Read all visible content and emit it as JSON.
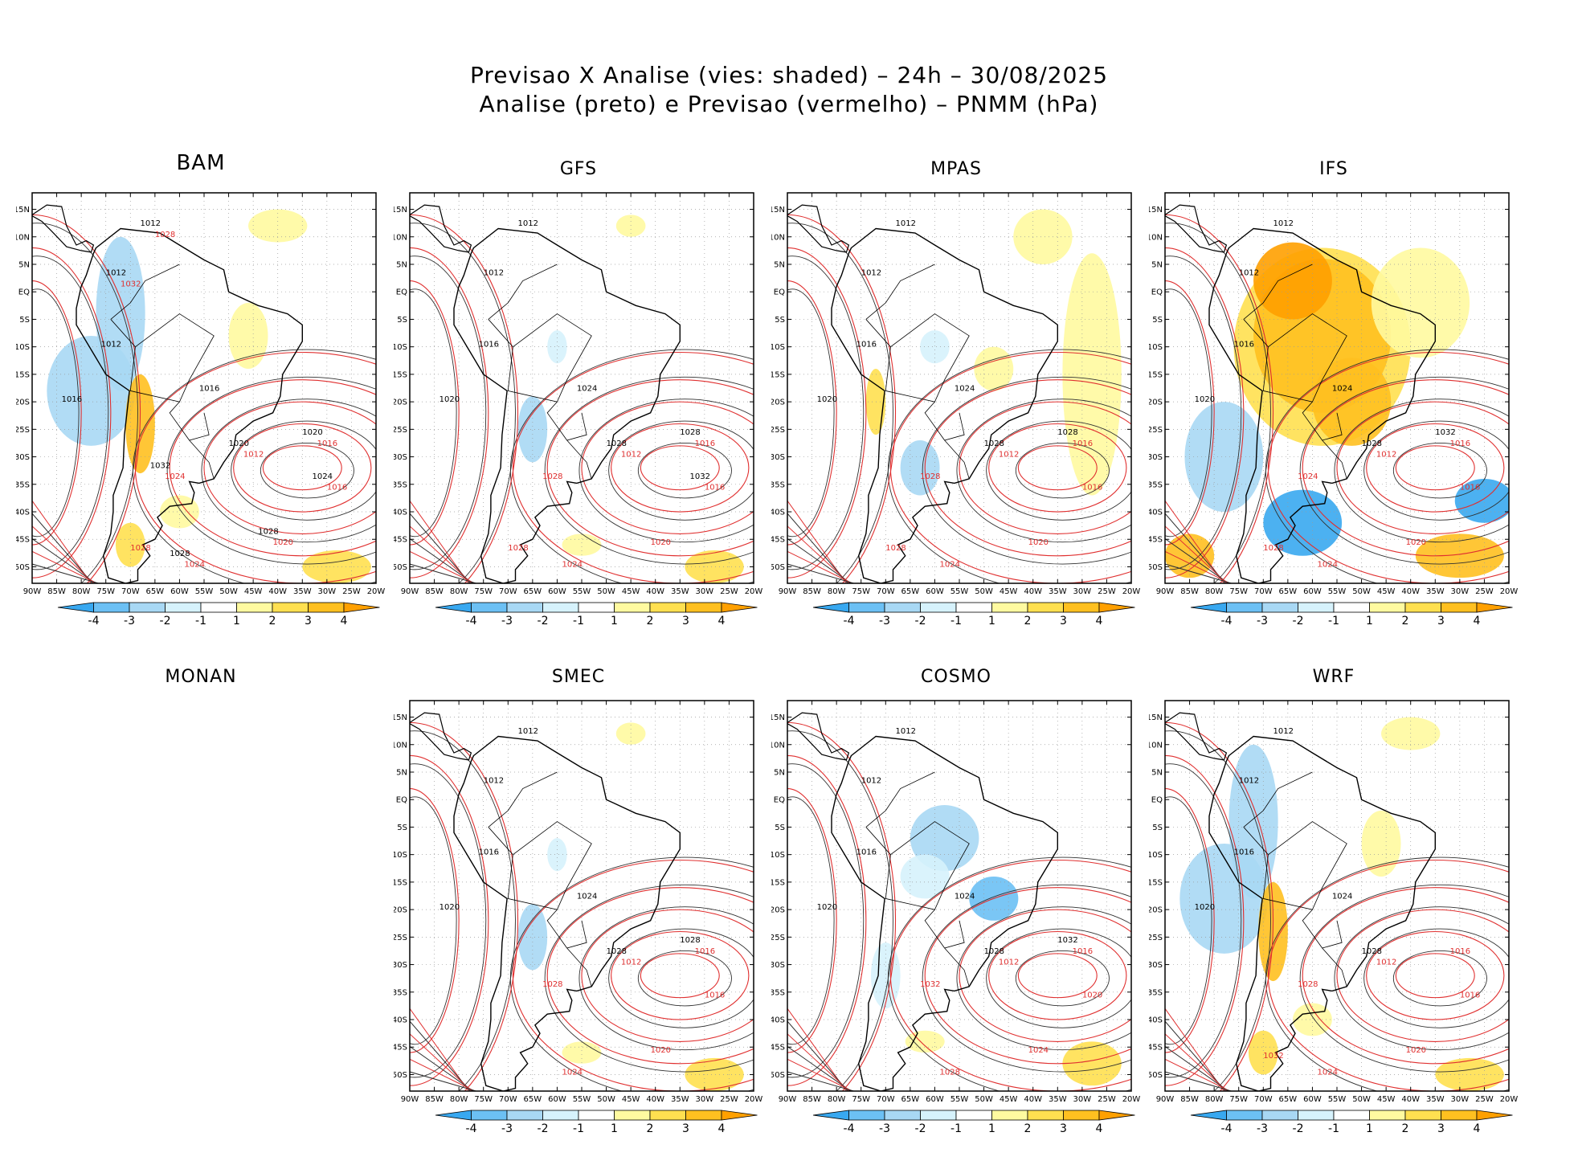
{
  "figure": {
    "title_line1": "Previsao X Analise (vies: shaded) – 24h – 30/08/2025",
    "title_line2": "Analise (preto) e Previsao (vermelho) – PNMM (hPa)"
  },
  "chart_data": {
    "type": "map-panels",
    "variable": "PNMM (hPa)",
    "forecast_hours": "24h",
    "date": "30/08/2025",
    "contours": {
      "analysis_color": "#000000",
      "forecast_color": "#e03030"
    },
    "lon_ticks": [
      "90W",
      "85W",
      "80W",
      "75W",
      "70W",
      "65W",
      "60W",
      "55W",
      "50W",
      "45W",
      "40W",
      "35W",
      "30W",
      "25W",
      "20W"
    ],
    "lat_ticks": [
      "15N",
      "10N",
      "5N",
      "EQ",
      "5S",
      "10S",
      "15S",
      "20S",
      "25S",
      "30S",
      "35S",
      "40S",
      "45S",
      "50S"
    ],
    "lon_range": [
      -90,
      -20
    ],
    "lat_range": [
      -53,
      18
    ],
    "colorbar": {
      "labels": [
        "-4",
        "-3",
        "-2",
        "-1",
        "1",
        "2",
        "3",
        "4"
      ],
      "colors": [
        "#38a8f0",
        "#6cc0f4",
        "#a8d8f4",
        "#d6f2fc",
        "#ffffff",
        "#fffaa0",
        "#ffe050",
        "#ffc020",
        "#ffa000"
      ]
    },
    "panels": [
      {
        "id": "bam",
        "name": "BAM",
        "has_map": true,
        "bias": "mixed",
        "iso_black": [
          "1012",
          "1012",
          "1012",
          "1016",
          "1016",
          "1020",
          "1020",
          "1024",
          "1028",
          "1028",
          "1032"
        ],
        "iso_red": [
          "1012",
          "1016",
          "1016",
          "1020",
          "1024",
          "1024",
          "1028",
          "1028",
          "1032"
        ]
      },
      {
        "id": "gfs",
        "name": "GFS",
        "has_map": true,
        "bias": "small",
        "iso_black": [
          "1012",
          "1012",
          "1016",
          "1020",
          "1024",
          "1028",
          "1028",
          "1032"
        ],
        "iso_red": [
          "1012",
          "1016",
          "1016",
          "1020",
          "1024",
          "1028",
          "1028"
        ]
      },
      {
        "id": "mpas",
        "name": "MPAS",
        "has_map": true,
        "bias": "positive-east",
        "iso_black": [
          "1012",
          "1012",
          "1016",
          "1020",
          "1024",
          "1028",
          "1028"
        ],
        "iso_red": [
          "1012",
          "1016",
          "1016",
          "1020",
          "1024",
          "1028",
          "1028"
        ]
      },
      {
        "id": "ifs",
        "name": "IFS",
        "has_map": true,
        "bias": "strong-positive-continent",
        "iso_black": [
          "1012",
          "1012",
          "1016",
          "1020",
          "1024",
          "1028",
          "1032"
        ],
        "iso_red": [
          "1012",
          "1016",
          "1016",
          "1020",
          "1024",
          "1024",
          "1028"
        ]
      },
      {
        "id": "monan",
        "name": "MONAN",
        "has_map": false
      },
      {
        "id": "smec",
        "name": "SMEC",
        "has_map": true,
        "bias": "small",
        "iso_black": [
          "1012",
          "1012",
          "1016",
          "1020",
          "1024",
          "1028",
          "1028"
        ],
        "iso_red": [
          "1012",
          "1016",
          "1016",
          "1020",
          "1024",
          "1028"
        ]
      },
      {
        "id": "cosmo",
        "name": "COSMO",
        "has_map": true,
        "bias": "negative-center",
        "iso_black": [
          "1012",
          "1012",
          "1016",
          "1020",
          "1024",
          "1028",
          "1032"
        ],
        "iso_red": [
          "1012",
          "1016",
          "1020",
          "1024",
          "1028",
          "1032"
        ]
      },
      {
        "id": "wrf",
        "name": "WRF",
        "has_map": true,
        "bias": "mixed",
        "iso_black": [
          "1012",
          "1012",
          "1016",
          "1020",
          "1024",
          "1028"
        ],
        "iso_red": [
          "1012",
          "1016",
          "1016",
          "1020",
          "1024",
          "1028",
          "1032"
        ]
      }
    ]
  }
}
